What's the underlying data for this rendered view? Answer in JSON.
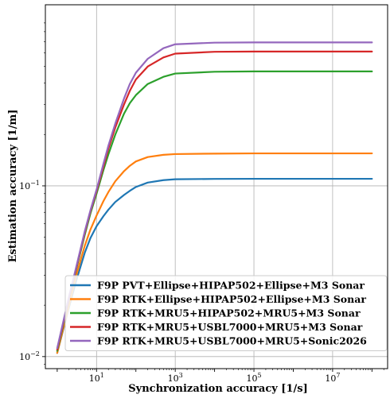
{
  "chart_data": {
    "type": "line",
    "xlabel": "Synchronization accuracy [1/s]",
    "ylabel": "Estimation accuracy [1/m]",
    "xscale": "log",
    "yscale": "log",
    "xlim": [
      0.5,
      250000000
    ],
    "ylim": [
      0.0085,
      1.15
    ],
    "grid": true,
    "legend_position": "lower-right",
    "x_ticks": [
      {
        "value": 10,
        "base": "10",
        "exp": "1"
      },
      {
        "value": 1000,
        "base": "10",
        "exp": "3"
      },
      {
        "value": 100000,
        "base": "10",
        "exp": "5"
      },
      {
        "value": 10000000,
        "base": "10",
        "exp": "7"
      }
    ],
    "y_ticks": [
      {
        "value": 0.01,
        "base": "10",
        "exp": "−2"
      },
      {
        "value": 0.1,
        "base": "10",
        "exp": "−1"
      }
    ],
    "x": [
      1,
      2,
      3,
      5,
      7,
      10,
      15,
      20,
      30,
      50,
      70,
      100,
      200,
      500,
      1000,
      10000,
      100000,
      1000000,
      10000000,
      100000000
    ],
    "series": [
      {
        "name": "F9P PVT+Ellipse+HIPAP502+Ellipse+M3 Sonar",
        "color": "#1f77b4",
        "values": [
          0.0105,
          0.0195,
          0.0275,
          0.0405,
          0.0495,
          0.058,
          0.0665,
          0.0725,
          0.0805,
          0.0885,
          0.0935,
          0.0985,
          0.1045,
          0.108,
          0.1093,
          0.1098,
          0.11,
          0.11,
          0.11,
          0.11
        ]
      },
      {
        "name": "F9P RTK+Ellipse+HIPAP502+Ellipse+M3 Sonar",
        "color": "#ff7f0e",
        "values": [
          0.0105,
          0.02,
          0.0295,
          0.0445,
          0.0555,
          0.067,
          0.0815,
          0.092,
          0.1065,
          0.122,
          0.131,
          0.139,
          0.1475,
          0.152,
          0.1535,
          0.1545,
          0.155,
          0.155,
          0.155,
          0.155
        ]
      },
      {
        "name": "F9P RTK+MRU5+HIPAP502+MRU5+M3 Sonar",
        "color": "#2ca02c",
        "values": [
          0.0108,
          0.0215,
          0.032,
          0.0515,
          0.069,
          0.09,
          0.124,
          0.153,
          0.2,
          0.265,
          0.305,
          0.34,
          0.395,
          0.435,
          0.455,
          0.466,
          0.468,
          0.468,
          0.468,
          0.468
        ]
      },
      {
        "name": "F9P RTK+MRU5+USBL7000+MRU5+M3 Sonar",
        "color": "#d62728",
        "values": [
          0.011,
          0.022,
          0.0325,
          0.053,
          0.071,
          0.093,
          0.13,
          0.165,
          0.22,
          0.3,
          0.36,
          0.42,
          0.5,
          0.565,
          0.595,
          0.61,
          0.612,
          0.612,
          0.612,
          0.612
        ]
      },
      {
        "name": "F9P RTK+MRU5+USBL7000+MRU5+Sonic2026",
        "color": "#9467bd",
        "values": [
          0.0112,
          0.0225,
          0.033,
          0.054,
          0.072,
          0.095,
          0.135,
          0.172,
          0.232,
          0.325,
          0.395,
          0.46,
          0.555,
          0.64,
          0.675,
          0.69,
          0.692,
          0.692,
          0.692,
          0.692
        ]
      }
    ]
  }
}
